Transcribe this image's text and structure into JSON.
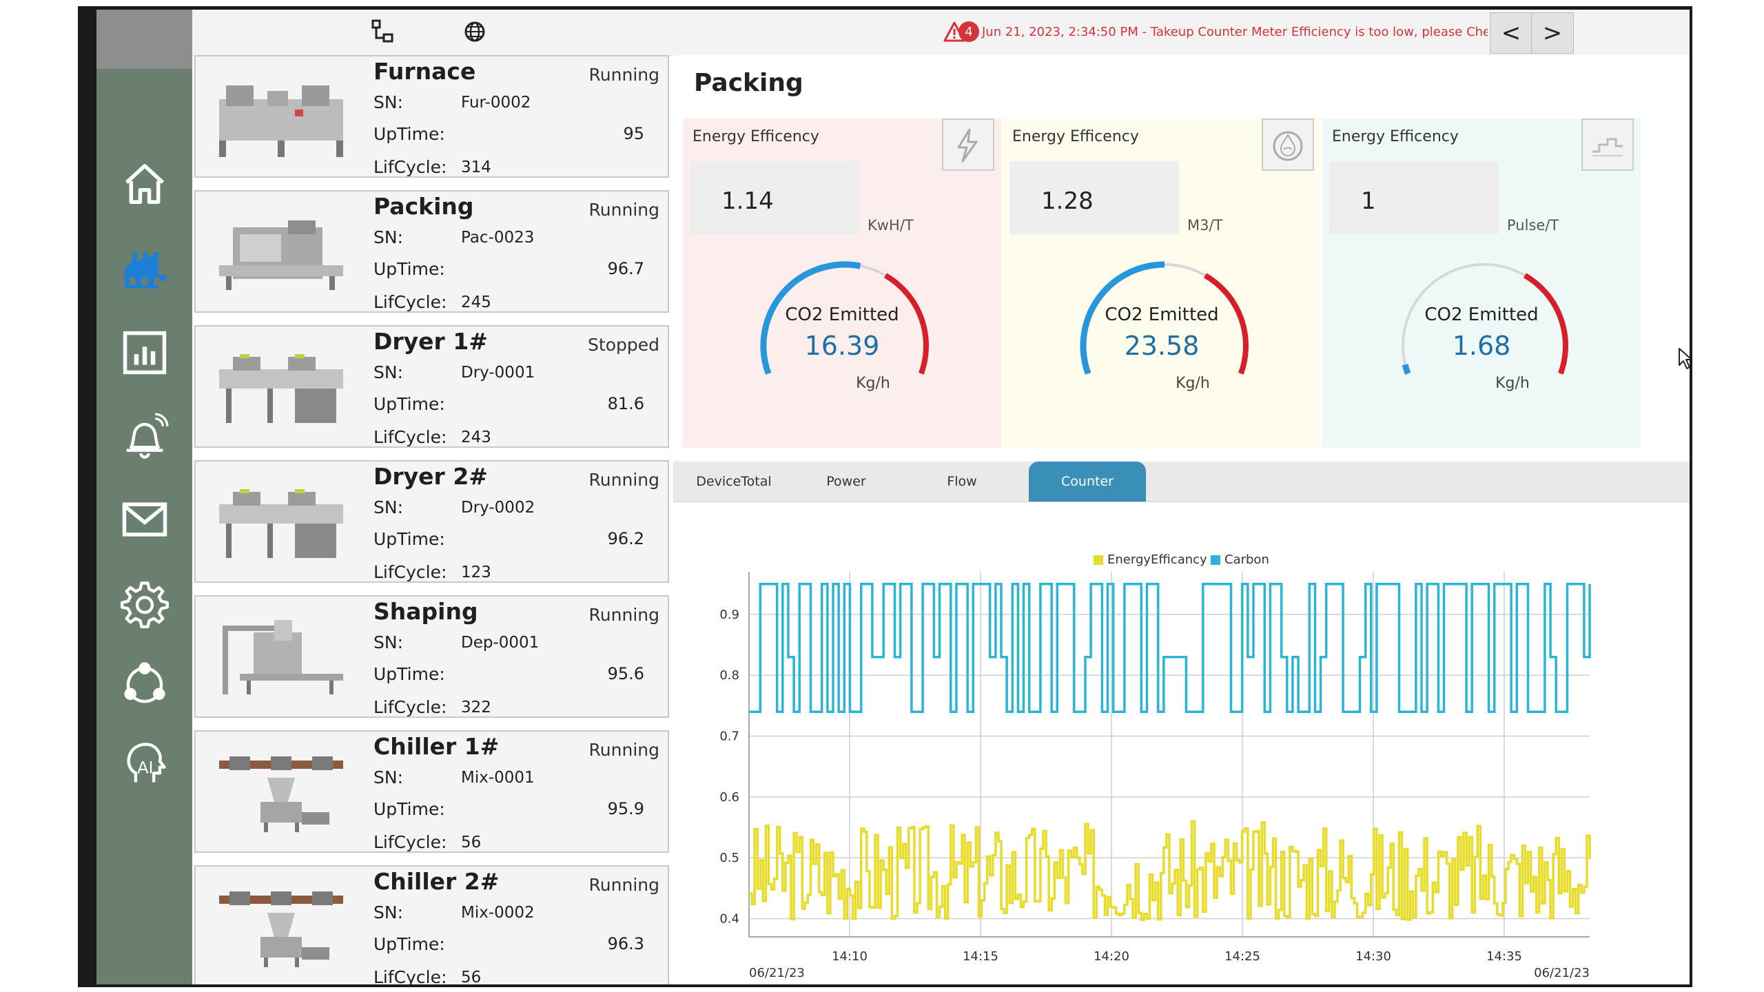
{
  "topbar": {
    "alarm_count": "4",
    "alarm_text": "Jun 21, 2023, 2:34:50 PM - Takeup Counter Meter Efficiency is too low, please Check",
    "prev_label": "<",
    "next_label": ">"
  },
  "sidebar": {
    "items": [
      {
        "icon": "home-icon"
      },
      {
        "icon": "factory-icon",
        "active": true
      },
      {
        "icon": "report-chart-icon"
      },
      {
        "icon": "alarm-bell-icon"
      },
      {
        "icon": "mail-icon"
      },
      {
        "icon": "settings-icon"
      },
      {
        "icon": "network-icon"
      },
      {
        "icon": "ai-icon"
      }
    ],
    "active_color": "#1e7fd6"
  },
  "labels": {
    "sn": "SN:",
    "uptime": "UpTime:",
    "lifecycle": "LifCycle:"
  },
  "devices": [
    {
      "name": "Furnace",
      "status": "Running",
      "sn": "Fur-0002",
      "uptime": "95",
      "lifecycle": "314"
    },
    {
      "name": "Packing",
      "status": "Running",
      "sn": "Pac-0023",
      "uptime": "96.7",
      "lifecycle": "245"
    },
    {
      "name": "Dryer 1#",
      "status": "Stopped",
      "sn": "Dry-0001",
      "uptime": "81.6",
      "lifecycle": "243"
    },
    {
      "name": "Dryer 2#",
      "status": "Running",
      "sn": "Dry-0002",
      "uptime": "96.2",
      "lifecycle": "123"
    },
    {
      "name": "Shaping",
      "status": "Running",
      "sn": "Dep-0001",
      "uptime": "95.6",
      "lifecycle": "322"
    },
    {
      "name": "Chiller 1#",
      "status": "Running",
      "sn": "Mix-0001",
      "uptime": "95.9",
      "lifecycle": "56"
    },
    {
      "name": "Chiller 2#",
      "status": "Running",
      "sn": "Mix-0002",
      "uptime": "96.3",
      "lifecycle": "56"
    }
  ],
  "panel": {
    "title": "Packing",
    "energy_cards": [
      {
        "label": "Energy Efficency",
        "value": "1.14",
        "unit": "KwH/T",
        "icon": "lightning-icon",
        "co2_label": "CO2 Emitted",
        "co2_value": "16.39",
        "co2_unit": "Kg/h",
        "gauge_fraction": 0.55,
        "bg": "#fdeeee"
      },
      {
        "label": "Energy Efficency",
        "value": "1.28",
        "unit": "M3/T",
        "icon": "water-drop-icon",
        "co2_label": "CO2 Emitted",
        "co2_value": "23.58",
        "co2_unit": "Kg/h",
        "gauge_fraction": 0.5,
        "bg": "#fdfced"
      },
      {
        "label": "Energy Efficency",
        "value": "1",
        "unit": "Pulse/T",
        "icon": "pulse-icon",
        "co2_label": "CO2 Emitted",
        "co2_value": "1.68",
        "co2_unit": "Kg/h",
        "gauge_fraction": 0.03,
        "bg": "#eef9f7"
      }
    ],
    "tabs": [
      "DeviceTotal",
      "Power",
      "Flow",
      "Counter"
    ],
    "active_tab": "Counter"
  },
  "chart_data": {
    "type": "line",
    "legend": [
      "EnergyEfficancy",
      "Carbon"
    ],
    "legend_placement": "top-center",
    "series_colors": {
      "EnergyEfficancy": "#e8dc2a",
      "Carbon": "#29b6d6"
    },
    "x_tick_labels": [
      "14:10",
      "14:15",
      "14:20",
      "14:25",
      "14:30",
      "14:35"
    ],
    "x_start_label": "06/21/23",
    "x_end_label": "06/21/23",
    "y_ticks": [
      0.4,
      0.5,
      0.6,
      0.7,
      0.8,
      0.9
    ],
    "ylim": [
      0.37,
      0.97
    ],
    "grid": true,
    "series": [
      {
        "name": "Carbon",
        "seed": 7,
        "low": 0.74,
        "high": 0.95,
        "mid": 0.83,
        "step_type": "square",
        "points": 150
      },
      {
        "name": "EnergyEfficancy",
        "seed": 3,
        "low": 0.38,
        "high": 0.56,
        "step_type": "noise",
        "points": 300
      }
    ]
  }
}
